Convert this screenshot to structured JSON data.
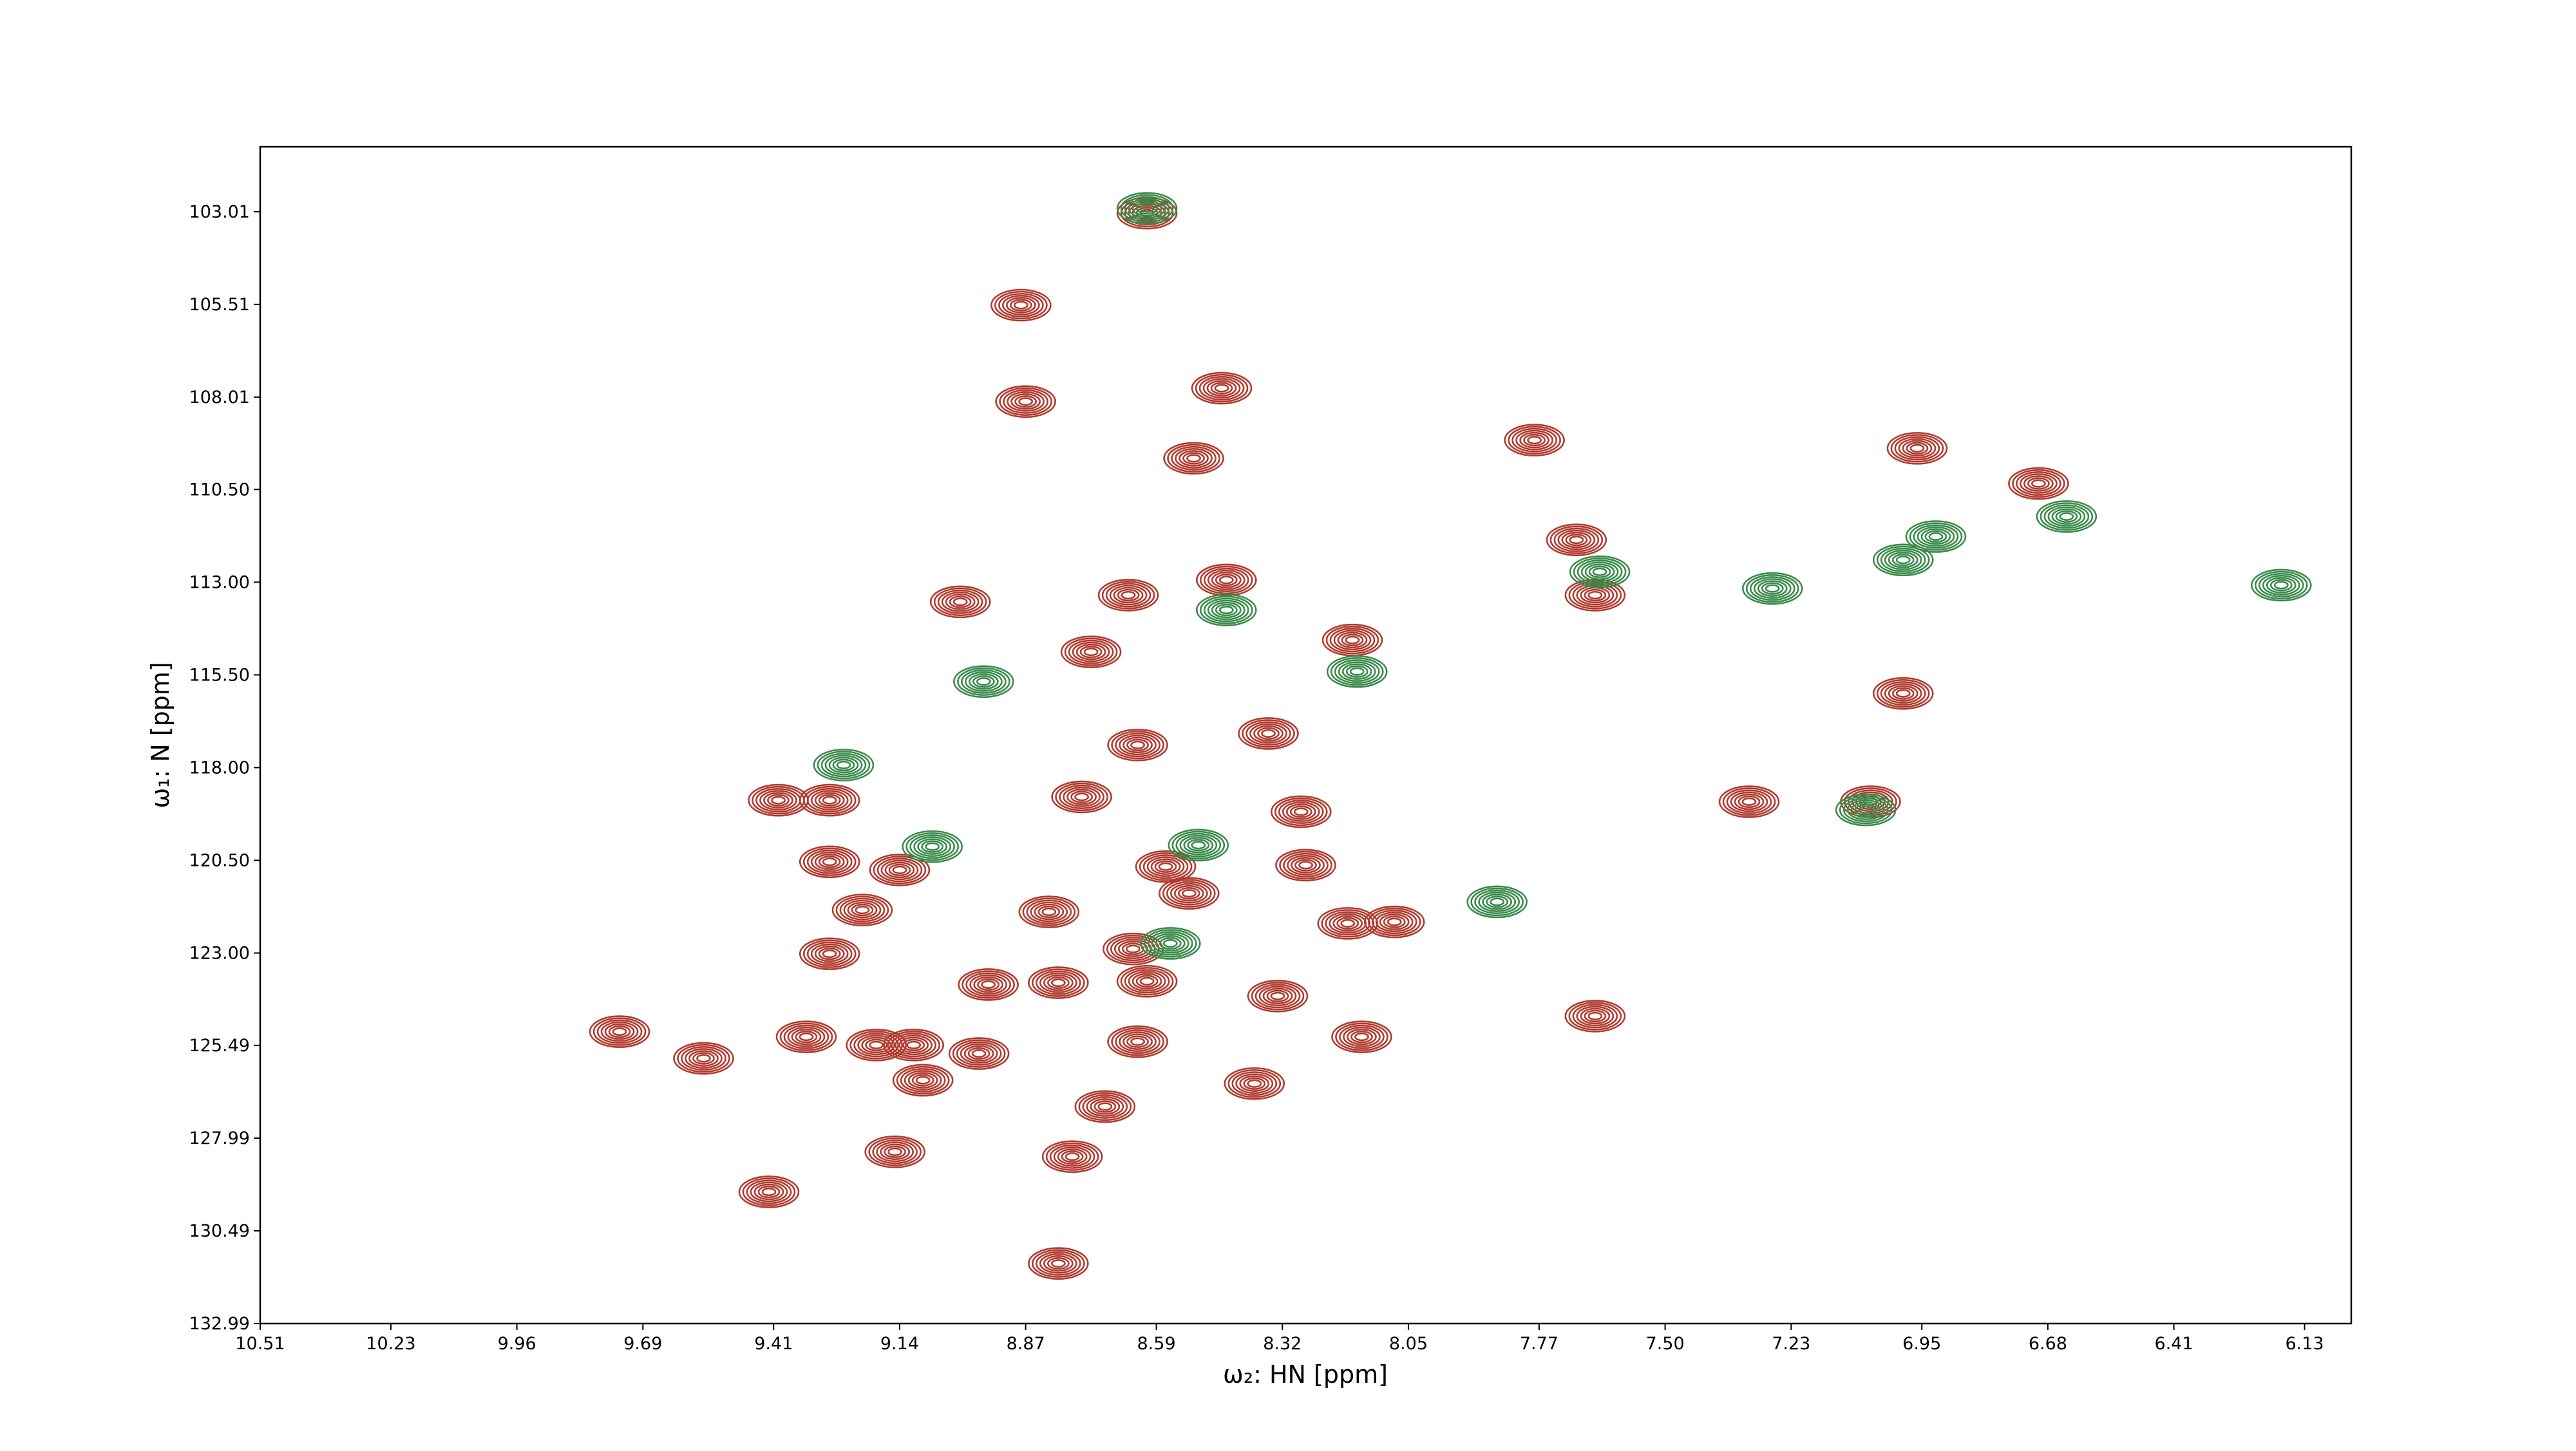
{
  "chart_data": {
    "type": "contour-peaks",
    "x_label": "ω₂: HN [ppm]",
    "y_label": "ω₁: N [ppm]",
    "xlim": [
      10.51,
      6.03
    ],
    "ylim": [
      132.99,
      101.26
    ],
    "xticks": [
      10.51,
      10.23,
      9.96,
      9.69,
      9.41,
      9.14,
      8.87,
      8.59,
      8.32,
      8.05,
      7.77,
      {
        "value": 7.5,
        "label": "7.50"
      },
      7.23,
      6.95,
      6.68,
      6.41,
      6.13
    ],
    "yticks": [
      103.01,
      105.51,
      108.01,
      {
        "value": 110.5,
        "label": "110.50"
      },
      {
        "value": 113,
        "label": "113.00"
      },
      {
        "value": 115.5,
        "label": "115.50"
      },
      {
        "value": 118,
        "label": "118.00"
      },
      {
        "value": 120.5,
        "label": "120.50"
      },
      {
        "value": 123,
        "label": "123.00"
      },
      125.49,
      127.99,
      130.49,
      132.99
    ],
    "series": [
      {
        "color": "#b03a2e",
        "x": [
          8.88,
          8.87,
          8.45,
          8.51,
          7.78,
          6.96,
          6.7,
          7.69,
          7.65,
          8.44,
          8.65,
          9.01,
          8.73,
          8.17,
          8.35,
          8.63,
          6.99,
          7.32,
          8.75,
          9.4,
          9.29,
          8.28,
          9.29,
          9.14,
          8.27,
          8.57,
          8.52,
          9.22,
          8.82,
          8.18,
          8.08,
          9.29,
          8.64,
          8.95,
          8.8,
          8.61,
          8.33,
          7.65,
          9.74,
          9.56,
          9.34,
          9.19,
          9.11,
          9.09,
          8.97,
          8.63,
          8.15,
          8.38,
          8.7,
          9.15,
          8.77,
          9.42,
          8.8,
          8.61,
          7.06
        ],
        "values": [
          105.53,
          108.13,
          107.77,
          109.66,
          109.17,
          109.39,
          110.34,
          111.86,
          113.35,
          112.94,
          113.35,
          113.53,
          114.88,
          114.56,
          117.08,
          117.39,
          116.0,
          118.92,
          118.79,
          118.88,
          118.88,
          119.19,
          120.54,
          120.76,
          120.63,
          120.67,
          121.39,
          121.84,
          121.89,
          122.2,
          122.16,
          123.02,
          122.89,
          123.85,
          123.8,
          123.76,
          124.16,
          124.7,
          125.12,
          125.84,
          125.26,
          125.48,
          125.48,
          126.43,
          125.71,
          125.39,
          125.26,
          126.52,
          127.14,
          128.36,
          128.49,
          129.44,
          131.37,
          103.05,
          118.92
        ]
      },
      {
        "color": "#3a8a4a",
        "x": [
          8.61,
          8.96,
          8.44,
          9.26,
          9.07,
          8.5,
          8.16,
          7.86,
          8.56,
          7.07,
          7.64,
          7.27,
          6.99,
          6.92,
          6.64,
          6.18
        ],
        "values": [
          102.92,
          115.68,
          113.75,
          117.93,
          120.13,
          120.09,
          115.41,
          121.62,
          122.74,
          119.14,
          112.72,
          113.17,
          112.4,
          111.77,
          111.23,
          113.08
        ]
      }
    ]
  }
}
